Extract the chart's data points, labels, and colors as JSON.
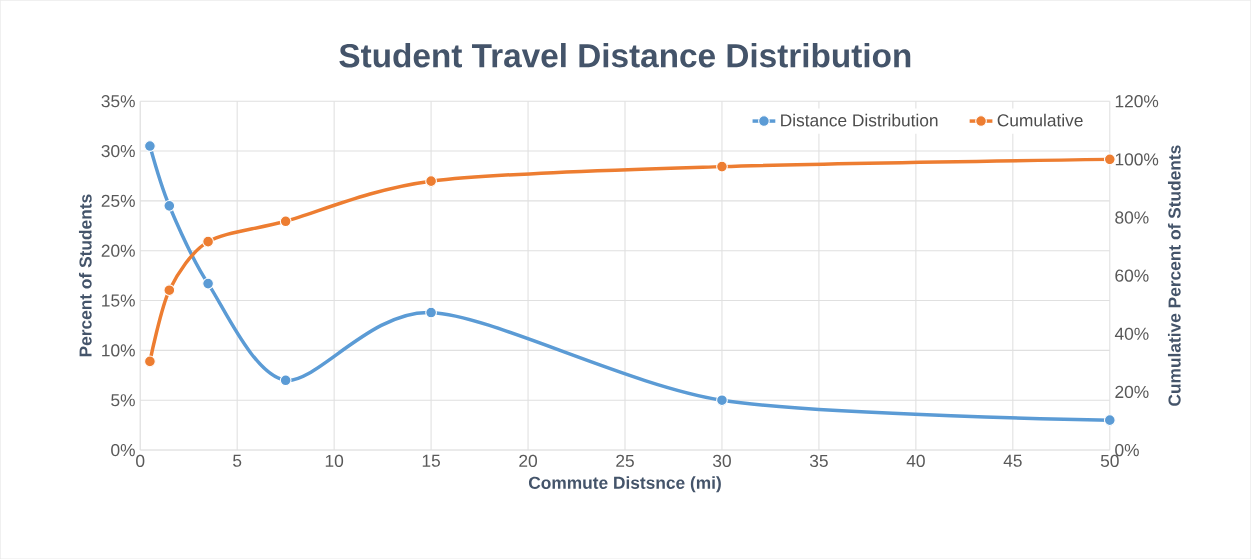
{
  "chart_data": {
    "type": "line",
    "title": "Student Travel Distance Distribution",
    "xlabel": "Commute Distsnce (mi)",
    "ylabel": "Percent of Students",
    "y2label": "Cumulative Percent of Students",
    "xlim": [
      0,
      50
    ],
    "xticks": [
      0,
      5,
      10,
      15,
      20,
      25,
      30,
      35,
      40,
      45,
      50
    ],
    "ylim": [
      0,
      35
    ],
    "yticks": [
      {
        "value": 0,
        "label": "0%"
      },
      {
        "value": 5,
        "label": "5%"
      },
      {
        "value": 10,
        "label": "10%"
      },
      {
        "value": 15,
        "label": "15%"
      },
      {
        "value": 20,
        "label": "20%"
      },
      {
        "value": 25,
        "label": "25%"
      },
      {
        "value": 30,
        "label": "30%"
      },
      {
        "value": 35,
        "label": "35%"
      }
    ],
    "y2lim": [
      0,
      120
    ],
    "y2ticks": [
      {
        "value": 0,
        "label": "0%"
      },
      {
        "value": 20,
        "label": "20%"
      },
      {
        "value": 40,
        "label": "40%"
      },
      {
        "value": 60,
        "label": "60%"
      },
      {
        "value": 80,
        "label": "80%"
      },
      {
        "value": 100,
        "label": "100%"
      },
      {
        "value": 120,
        "label": "120%"
      }
    ],
    "x": [
      0.5,
      1.5,
      3.5,
      7.5,
      15,
      30,
      50
    ],
    "series": [
      {
        "name": "Distance Distribution",
        "color": "#5b9bd5",
        "values": [
          30.5,
          24.5,
          16.7,
          7,
          13.8,
          5,
          3
        ]
      },
      {
        "name": "Cumulative",
        "color": "#ed7d31",
        "axis": "y2",
        "values": [
          30.5,
          55,
          71.7,
          78.7,
          92.5,
          97.5,
          100
        ]
      }
    ],
    "grid": true,
    "legend": "top right",
    "marker": "circle",
    "line_style": "solid"
  }
}
